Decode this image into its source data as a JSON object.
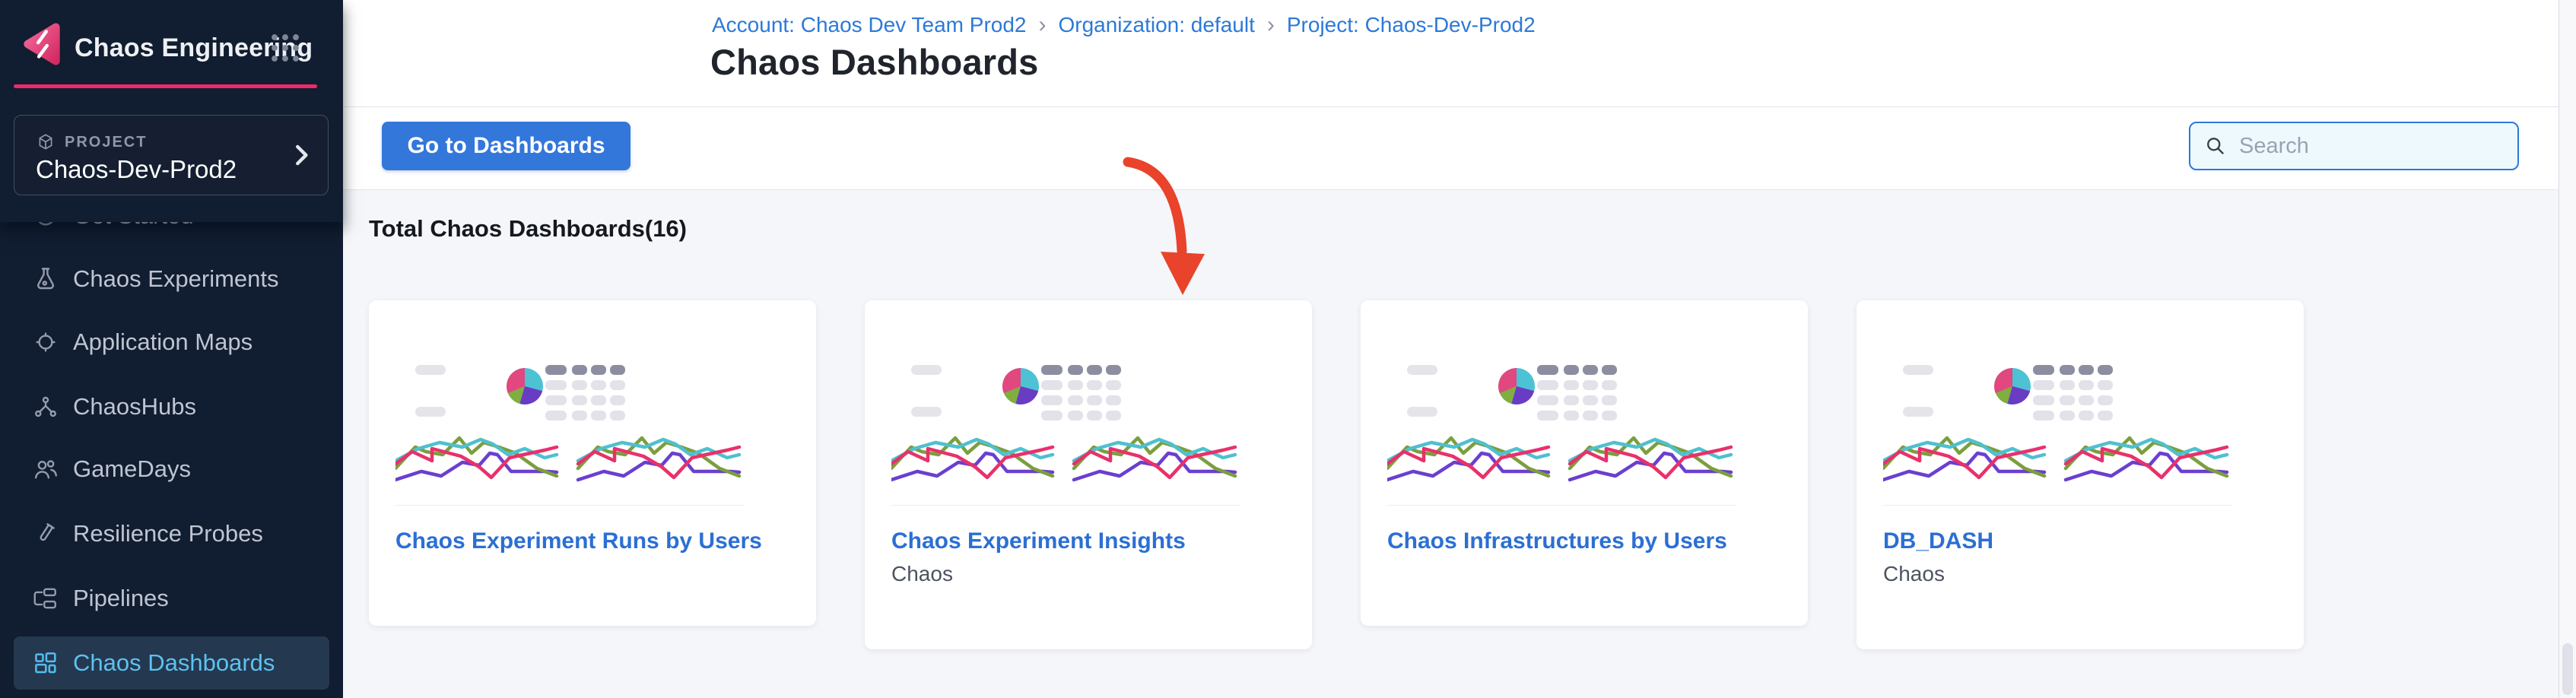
{
  "brand": {
    "name": "Chaos Engineering"
  },
  "project_selector": {
    "label": "PROJECT",
    "value": "Chaos-Dev-Prod2"
  },
  "sidebar": {
    "items": [
      {
        "label": "Get Started",
        "icon": "get-started-icon",
        "active": false,
        "clipped": true
      },
      {
        "label": "Chaos Experiments",
        "icon": "flask-icon",
        "active": false
      },
      {
        "label": "Application Maps",
        "icon": "target-icon",
        "active": false
      },
      {
        "label": "ChaosHubs",
        "icon": "hub-icon",
        "active": false
      },
      {
        "label": "GameDays",
        "icon": "users-icon",
        "active": false
      },
      {
        "label": "Resilience Probes",
        "icon": "probe-icon",
        "active": false
      },
      {
        "label": "Pipelines",
        "icon": "pipeline-icon",
        "active": false
      },
      {
        "label": "Chaos Dashboards",
        "icon": "dashboard-icon",
        "active": true
      }
    ]
  },
  "breadcrumb": {
    "separator": "›",
    "items": [
      {
        "label": "Account: Chaos Dev Team Prod2"
      },
      {
        "label": "Organization: default"
      },
      {
        "label": "Project: Chaos-Dev-Prod2"
      }
    ]
  },
  "page": {
    "title": "Chaos Dashboards"
  },
  "toolbar": {
    "go_to_dashboards_label": "Go to Dashboards",
    "search_placeholder": "Search",
    "search_value": ""
  },
  "content": {
    "total_heading": "Total Chaos Dashboards(16)"
  },
  "cards": [
    {
      "title": "Chaos Experiment Runs by Users",
      "subtitle": ""
    },
    {
      "title": "Chaos Experiment Insights",
      "subtitle": "Chaos"
    },
    {
      "title": "Chaos Infrastructures by Users",
      "subtitle": ""
    },
    {
      "title": "DB_DASH",
      "subtitle": "Chaos"
    }
  ],
  "colors": {
    "sidebar_bg": "#111d30",
    "sidebar_active_bg": "#24384f",
    "sidebar_active_text": "#5cc2f0",
    "brand_pink": "#ee2a6b",
    "link_blue": "#2c79d8",
    "button_blue": "#3377db",
    "content_bg": "#f4f6f9",
    "card_title_blue": "#2b6fd3",
    "annotation_arrow": "#e9432b",
    "thumb_line_colors": [
      "#e8316b",
      "#7a9f3d",
      "#4fc0ce",
      "#6a3fd0"
    ],
    "thumb_pie_colors": [
      "#4cc2d4",
      "#6a3cc4",
      "#7fae41",
      "#e0487f"
    ]
  }
}
